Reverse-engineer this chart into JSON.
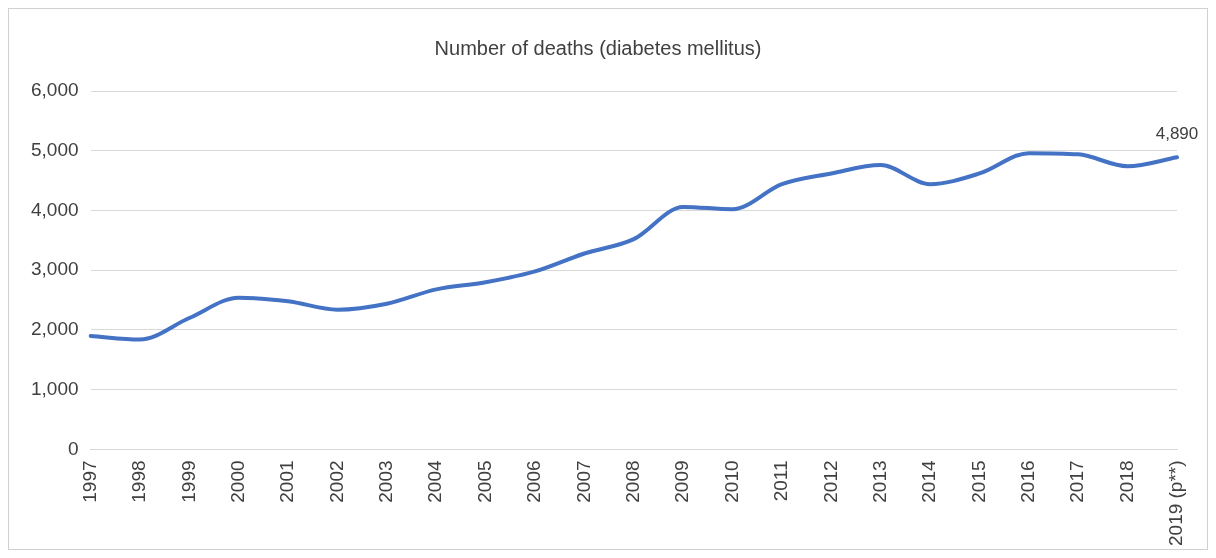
{
  "chart_data": {
    "type": "line",
    "title": "Number of deaths (diabetes mellitus)",
    "categories": [
      "1997",
      "1998",
      "1999",
      "2000",
      "2001",
      "2002",
      "2003",
      "2004",
      "2005",
      "2006",
      "2007",
      "2008",
      "2009",
      "2010",
      "2011",
      "2012",
      "2013",
      "2014",
      "2015",
      "2016",
      "2017",
      "2018",
      "2019 (p**)"
    ],
    "series": [
      {
        "color": "#4472c4",
        "values": [
          1900,
          1840,
          2200,
          2540,
          2480,
          2340,
          2440,
          2680,
          2800,
          2980,
          3280,
          3520,
          4060,
          4020,
          4440,
          4620,
          4760,
          4440,
          4620,
          4960,
          4940,
          4740,
          4890
        ],
        "value_labels": [
          null,
          null,
          null,
          null,
          null,
          null,
          null,
          null,
          null,
          null,
          null,
          null,
          null,
          null,
          null,
          null,
          null,
          null,
          null,
          null,
          null,
          null,
          "4,890"
        ]
      }
    ],
    "ylim": [
      0,
      6000
    ],
    "yticks": [
      {
        "value": 0,
        "label": "0"
      },
      {
        "value": 1000,
        "label": "1,000"
      },
      {
        "value": 2000,
        "label": "2,000"
      },
      {
        "value": 3000,
        "label": "3,000"
      },
      {
        "value": 4000,
        "label": "4,000"
      },
      {
        "value": 5000,
        "label": "5,000"
      },
      {
        "value": 6000,
        "label": "6,000"
      }
    ],
    "grid": "y",
    "legend": false,
    "marker": "none",
    "line_style": "solid"
  }
}
